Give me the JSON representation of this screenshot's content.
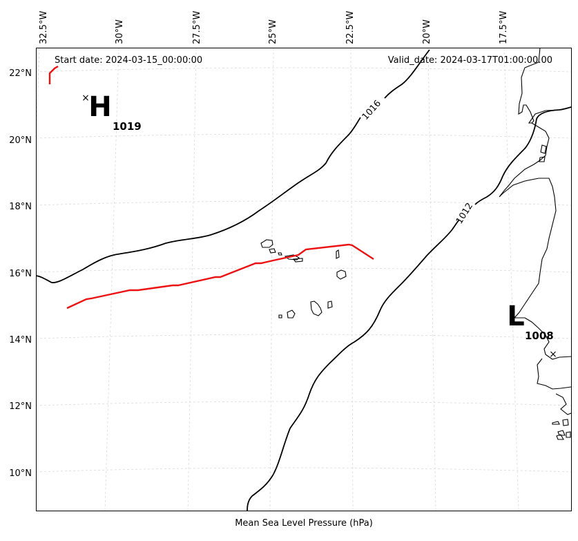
{
  "header": {
    "start_date": "Start date: 2024-03-15_00:00:00",
    "valid_date": "Valid_date: 2024-03-17T01:00:00.00"
  },
  "axes": {
    "xlabel": "Mean Sea Level Pressure (hPa)",
    "longitude_ticks": [
      "32.5°W",
      "30°W",
      "27.5°W",
      "25°W",
      "22.5°W",
      "20°W",
      "17.5°W"
    ],
    "latitude_ticks": [
      "22°N",
      "20°N",
      "18°N",
      "16°N",
      "14°N",
      "12°N",
      "10°N"
    ]
  },
  "pressure_centers": [
    {
      "type": "high",
      "letter": "H",
      "value": "1019",
      "lat": 21.1,
      "lon": -30.8
    },
    {
      "type": "low",
      "letter": "L",
      "value": "1008",
      "lat": 13.6,
      "lon": -16.8
    }
  ],
  "isobar_labels": [
    "1016",
    "1012"
  ],
  "colors": {
    "isobar": "#000000",
    "front": "#ee1111",
    "coast": "#000000",
    "grid": "#d8d8d8"
  }
}
